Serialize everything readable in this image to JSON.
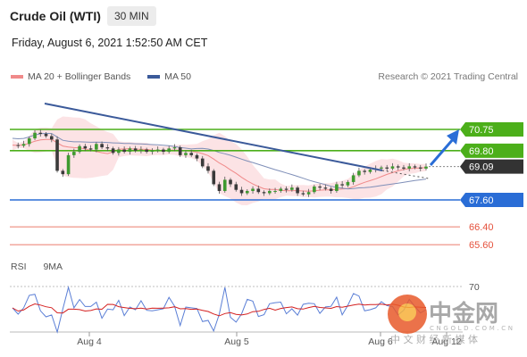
{
  "header": {
    "title": "Crude Oil (WTI)",
    "timeframe": "30 MIN",
    "datetime": "Friday, August 6, 2021 1:52:50 AM CET"
  },
  "legend": {
    "ma20_label": "MA 20 + Bollinger Bands",
    "ma50_label": "MA 50",
    "credit": "Research © 2021 Trading Central"
  },
  "rsi_legend": {
    "rsi_label": "RSI",
    "ma9_label": "9MA"
  },
  "colors": {
    "green": "#4caf1a",
    "blue": "#2a6dd6",
    "red": "#e5513c",
    "dark": "#333333",
    "ma20": "#f08a8a",
    "ma50": "#3b5a9a",
    "rsi": "#5b7fd6",
    "rsi_ma": "#d42020"
  },
  "chart_data": {
    "type": "candlestick",
    "x_tick_labels": [
      "Aug 4",
      "Aug 5",
      "Aug 6",
      "Aug 12"
    ],
    "price_levels": [
      {
        "value": "70.75",
        "kind": "resistance",
        "color": "#4caf1a"
      },
      {
        "value": "69.80",
        "kind": "resistance",
        "color": "#4caf1a"
      },
      {
        "value": "69.09",
        "kind": "current",
        "color": "#333333"
      },
      {
        "value": "67.60",
        "kind": "support",
        "color": "#2a6dd6"
      },
      {
        "value": "66.40",
        "kind": "support",
        "color": "#e5513c"
      },
      {
        "value": "65.60",
        "kind": "support",
        "color": "#e5513c"
      }
    ],
    "close_path": [
      70.05,
      70.02,
      70.1,
      70.35,
      70.6,
      70.55,
      70.45,
      70.3,
      68.9,
      68.75,
      69.6,
      69.75,
      70.0,
      69.9,
      69.85,
      70.1,
      69.95,
      69.9,
      69.7,
      69.85,
      69.75,
      69.9,
      69.8,
      69.85,
      69.75,
      69.8,
      69.85,
      69.75,
      69.9,
      69.95,
      69.6,
      69.7,
      69.6,
      69.45,
      69.1,
      68.9,
      68.3,
      68.0,
      68.5,
      68.3,
      68.05,
      67.9,
      68.0,
      68.1,
      67.95,
      67.9,
      68.0,
      68.0,
      68.1,
      68.05,
      68.15,
      67.9,
      67.85,
      67.95,
      68.2,
      68.15,
      68.1,
      68.0,
      68.3,
      68.25,
      68.4,
      68.7,
      68.9,
      68.85,
      68.95,
      69.0,
      69.05,
      69.0,
      69.1,
      69.05,
      69.0,
      69.1,
      69.05,
      69.0,
      69.09
    ],
    "rsi_level_label": "70"
  },
  "watermark": {
    "brand_cn": "中金网",
    "domain": "CNGOLD.COM.CN",
    "slogan": "中 文 财 经 新 媒 体"
  }
}
